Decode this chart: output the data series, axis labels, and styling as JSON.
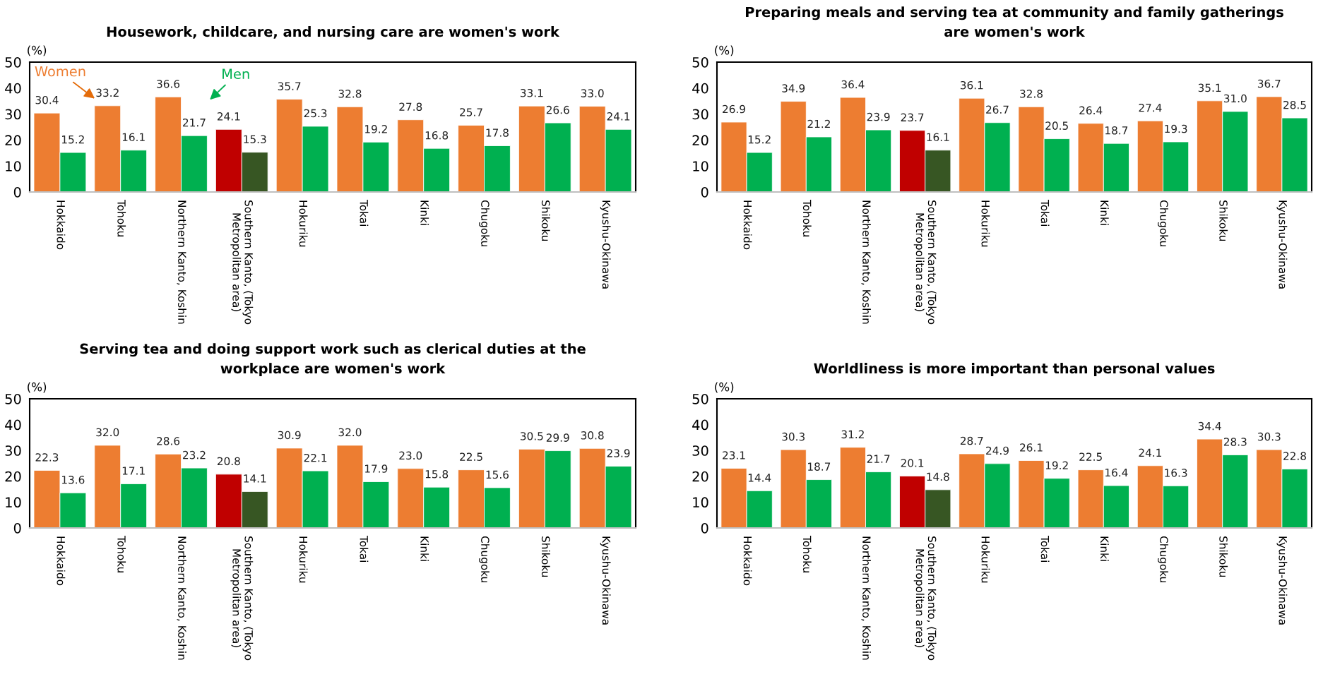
{
  "chart_data": [
    {
      "type": "bar",
      "title": "Housework, childcare, and nursing care are women's work",
      "ylabel": "(%)",
      "categories": [
        "Hokkaido",
        "Tohoku",
        "Northern Kanto, Koshin",
        "Southern Kanto, (Tokyo\nMetropolitan area)",
        "Hokuriku",
        "Tokai",
        "Kinki",
        "Chugoku",
        "Shikoku",
        "Kyushu-Okinawa"
      ],
      "series": [
        {
          "name": "Women",
          "color": "#ed7d31",
          "colors": [
            "#ed7d31",
            "#ed7d31",
            "#ed7d31",
            "#c00000",
            "#ed7d31",
            "#ed7d31",
            "#ed7d31",
            "#ed7d31",
            "#ed7d31",
            "#ed7d31"
          ],
          "values": [
            30.4,
            33.2,
            36.6,
            24.1,
            35.7,
            32.8,
            27.8,
            25.7,
            33.1,
            33.0
          ],
          "value_labels": [
            "30.4",
            "33.2",
            "36.6",
            "24.1",
            "35.7",
            "32.8",
            "27.8",
            "25.7",
            "33.1",
            "33.0"
          ]
        },
        {
          "name": "Men",
          "color": "#00b050",
          "colors": [
            "#00b050",
            "#00b050",
            "#00b050",
            "#375623",
            "#00b050",
            "#00b050",
            "#00b050",
            "#00b050",
            "#00b050",
            "#00b050"
          ],
          "values": [
            15.2,
            16.1,
            21.7,
            15.3,
            25.3,
            19.2,
            16.8,
            17.8,
            26.6,
            24.1
          ],
          "value_labels": [
            "15.2",
            "16.1",
            "21.7",
            "15.3",
            "25.3",
            "19.2",
            "16.8",
            "17.8",
            "26.6",
            "24.1"
          ]
        }
      ],
      "ylim": [
        0,
        50
      ],
      "yticks": [
        0,
        10,
        20,
        30,
        40,
        50
      ]
    },
    {
      "type": "bar",
      "title": "Preparing meals and serving tea at community and family gatherings are women's work",
      "ylabel": "(%)",
      "categories": [
        "Hokkaido",
        "Tohoku",
        "Northern Kanto, Koshin",
        "Southern Kanto, (Tokyo\nMetropolitan area)",
        "Hokuriku",
        "Tokai",
        "Kinki",
        "Chugoku",
        "Shikoku",
        "Kyushu-Okinawa"
      ],
      "series": [
        {
          "colors": [
            "#ed7d31",
            "#ed7d31",
            "#ed7d31",
            "#c00000",
            "#ed7d31",
            "#ed7d31",
            "#ed7d31",
            "#ed7d31",
            "#ed7d31",
            "#ed7d31"
          ],
          "values": [
            26.9,
            34.9,
            36.4,
            23.7,
            36.1,
            32.8,
            26.4,
            27.4,
            35.1,
            36.7
          ],
          "value_labels": [
            "26.9",
            "34.9",
            "36.4",
            "23.7",
            "36.1",
            "32.8",
            "26.4",
            "27.4",
            "35.1",
            "36.7"
          ]
        },
        {
          "colors": [
            "#00b050",
            "#00b050",
            "#00b050",
            "#375623",
            "#00b050",
            "#00b050",
            "#00b050",
            "#00b050",
            "#00b050",
            "#00b050"
          ],
          "values": [
            15.2,
            21.2,
            23.9,
            16.1,
            26.7,
            20.5,
            18.7,
            19.3,
            31.0,
            28.5
          ],
          "value_labels": [
            "15.2",
            "21.2",
            "23.9",
            "16.1",
            "26.7",
            "20.5",
            "18.7",
            "19.3",
            "31.0",
            "28.5"
          ]
        }
      ],
      "ylim": [
        0,
        50
      ],
      "yticks": [
        0,
        10,
        20,
        30,
        40,
        50
      ]
    },
    {
      "type": "bar",
      "title": "Serving tea and doing support work such as clerical duties at the workplace are women's work",
      "ylabel": "(%)",
      "categories": [
        "Hokkaido",
        "Tohoku",
        "Northern Kanto, Koshin",
        "Southern Kanto, (Tokyo\nMetropolitan area)",
        "Hokuriku",
        "Tokai",
        "Kinki",
        "Chugoku",
        "Shikoku",
        "Kyushu-Okinawa"
      ],
      "series": [
        {
          "colors": [
            "#ed7d31",
            "#ed7d31",
            "#ed7d31",
            "#c00000",
            "#ed7d31",
            "#ed7d31",
            "#ed7d31",
            "#ed7d31",
            "#ed7d31",
            "#ed7d31"
          ],
          "values": [
            22.3,
            32.0,
            28.6,
            20.8,
            30.9,
            32.0,
            23.0,
            22.5,
            30.5,
            30.8
          ],
          "value_labels": [
            "22.3",
            "32.0",
            "28.6",
            "20.8",
            "30.9",
            "32.0",
            "23.0",
            "22.5",
            "30.5",
            "30.8"
          ]
        },
        {
          "colors": [
            "#00b050",
            "#00b050",
            "#00b050",
            "#375623",
            "#00b050",
            "#00b050",
            "#00b050",
            "#00b050",
            "#00b050",
            "#00b050"
          ],
          "values": [
            13.6,
            17.1,
            23.2,
            14.1,
            22.1,
            17.9,
            15.8,
            15.6,
            29.9,
            23.9
          ],
          "value_labels": [
            "13.6",
            "17.1",
            "23.2",
            "14.1",
            "22.1",
            "17.9",
            "15.8",
            "15.6",
            "29.9",
            "23.9"
          ]
        }
      ],
      "ylim": [
        0,
        50
      ],
      "yticks": [
        0,
        10,
        20,
        30,
        40,
        50
      ]
    },
    {
      "type": "bar",
      "title": "Worldliness is more important than personal values",
      "ylabel": "(%)",
      "categories": [
        "Hokkaido",
        "Tohoku",
        "Northern Kanto, Koshin",
        "Southern Kanto, (Tokyo\nMetropolitan area)",
        "Hokuriku",
        "Tokai",
        "Kinki",
        "Chugoku",
        "Shikoku",
        "Kyushu-Okinawa"
      ],
      "series": [
        {
          "colors": [
            "#ed7d31",
            "#ed7d31",
            "#ed7d31",
            "#c00000",
            "#ed7d31",
            "#ed7d31",
            "#ed7d31",
            "#ed7d31",
            "#ed7d31",
            "#ed7d31"
          ],
          "values": [
            23.1,
            30.3,
            31.2,
            20.1,
            28.7,
            26.1,
            22.5,
            24.1,
            34.4,
            30.3
          ],
          "value_labels": [
            "23.1",
            "30.3",
            "31.2",
            "20.1",
            "28.7",
            "26.1",
            "22.5",
            "24.1",
            "34.4",
            "30.3"
          ]
        },
        {
          "colors": [
            "#00b050",
            "#00b050",
            "#00b050",
            "#375623",
            "#00b050",
            "#00b050",
            "#00b050",
            "#00b050",
            "#00b050",
            "#00b050"
          ],
          "values": [
            14.4,
            18.7,
            21.7,
            14.8,
            24.9,
            19.2,
            16.4,
            16.3,
            28.3,
            22.8
          ],
          "value_labels": [
            "14.4",
            "18.7",
            "21.7",
            "14.8",
            "24.9",
            "19.2",
            "16.4",
            "16.3",
            "28.3",
            "22.8"
          ]
        }
      ],
      "ylim": [
        0,
        50
      ],
      "yticks": [
        0,
        10,
        20,
        30,
        40,
        50
      ]
    }
  ]
}
